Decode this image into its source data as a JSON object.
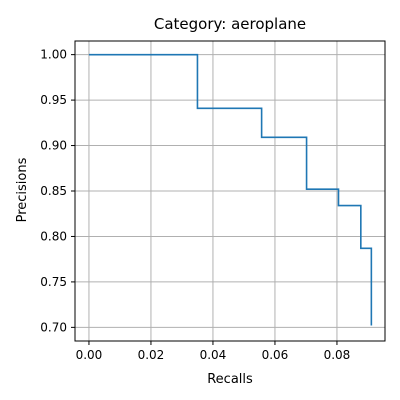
{
  "chart_data": {
    "type": "line",
    "title": "Category: aeroplane",
    "xlabel": "Recalls",
    "ylabel": "Precisions",
    "xlim": [
      -0.0045,
      0.0955
    ],
    "ylim": [
      0.685,
      1.015
    ],
    "x_ticks": [
      0.0,
      0.02,
      0.04,
      0.06,
      0.08
    ],
    "x_tick_labels": [
      "0.00",
      "0.02",
      "0.04",
      "0.06",
      "0.08"
    ],
    "y_ticks": [
      0.7,
      0.75,
      0.8,
      0.85,
      0.9,
      0.95,
      1.0
    ],
    "y_tick_labels": [
      "0.70",
      "0.75",
      "0.80",
      "0.85",
      "0.90",
      "0.95",
      "1.00"
    ],
    "grid": true,
    "line_color": "#1f77b4",
    "series": [
      {
        "x": [
          0.0,
          0.035,
          0.035,
          0.0557,
          0.0557,
          0.0702,
          0.0702,
          0.0805,
          0.0805,
          0.0877,
          0.0877,
          0.0911,
          0.0911
        ],
        "y": [
          1.0,
          1.0,
          0.941,
          0.941,
          0.909,
          0.909,
          0.852,
          0.852,
          0.834,
          0.834,
          0.787,
          0.787,
          0.702
        ]
      }
    ]
  }
}
